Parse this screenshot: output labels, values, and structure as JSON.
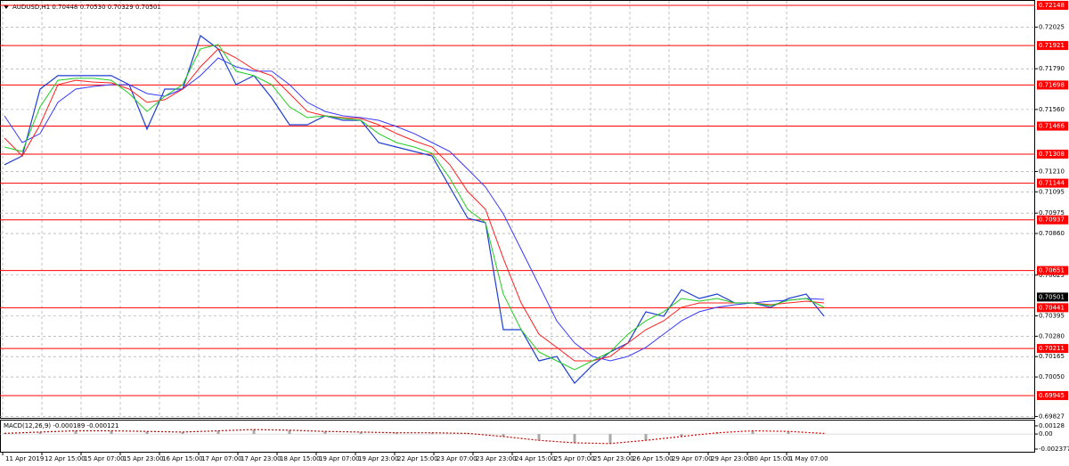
{
  "chart_data": [
    {
      "type": "line",
      "title": "AUDUSD,H1  0.70448 0.70530 0.70329 0.70501",
      "x": [
        0,
        1,
        2,
        3,
        4,
        5,
        6,
        7,
        8,
        9,
        10,
        11,
        12,
        13,
        14,
        15,
        16,
        17,
        18,
        19,
        20,
        21,
        22,
        23,
        24,
        25,
        26,
        27,
        28,
        29,
        30,
        31,
        32,
        33,
        34,
        35,
        36,
        37,
        38,
        39,
        40,
        41,
        42,
        43,
        44,
        45,
        46
      ],
      "xlim": [
        -0.25,
        57.75
      ],
      "xticks": [
        {
          "value": -0.1,
          "label": "11 Apr 2019"
        },
        {
          "value": 2.1,
          "label": "12 Apr 15:00"
        },
        {
          "value": 4.3,
          "label": "15 Apr 07:00"
        },
        {
          "value": 6.5,
          "label": "15 Apr 23:00"
        },
        {
          "value": 8.7,
          "label": "16 Apr 15:00"
        },
        {
          "value": 10.9,
          "label": "17 Apr 07:00"
        },
        {
          "value": 13.1,
          "label": "17 Apr 23:00"
        },
        {
          "value": 15.3,
          "label": "18 Apr 15:00"
        },
        {
          "value": 17.5,
          "label": "19 Apr 07:00"
        },
        {
          "value": 19.7,
          "label": "19 Apr 23:00"
        },
        {
          "value": 21.9,
          "label": "22 Apr 15:00"
        },
        {
          "value": 24.1,
          "label": "23 Apr 07:00"
        },
        {
          "value": 26.3,
          "label": "23 Apr 23:00"
        },
        {
          "value": 28.5,
          "label": "24 Apr 15:00"
        },
        {
          "value": 30.7,
          "label": "25 Apr 07:00"
        },
        {
          "value": 32.9,
          "label": "25 Apr 23:00"
        },
        {
          "value": 35.1,
          "label": "26 Apr 15:00"
        },
        {
          "value": 37.3,
          "label": "29 Apr 07:00"
        },
        {
          "value": 39.5,
          "label": "29 Apr 23:00"
        },
        {
          "value": 41.7,
          "label": "30 Apr 15:00"
        },
        {
          "value": 43.9,
          "label": "1 May 07:00"
        }
      ],
      "ylim": [
        0.69814,
        0.72178
      ],
      "yticks": [
        {
          "value": 0.72025,
          "label": "0.72025"
        },
        {
          "value": 0.7179,
          "label": "0.71790"
        },
        {
          "value": 0.7156,
          "label": "0.71560"
        },
        {
          "value": 0.7121,
          "label": "0.71210"
        },
        {
          "value": 0.71095,
          "label": "0.71095"
        },
        {
          "value": 0.70975,
          "label": "0.70975"
        },
        {
          "value": 0.7086,
          "label": "0.70860"
        },
        {
          "value": 0.70625,
          "label": "0.70625"
        },
        {
          "value": 0.70395,
          "label": "0.70395"
        },
        {
          "value": 0.7028,
          "label": "0.70280"
        },
        {
          "value": 0.70165,
          "label": "0.70165"
        },
        {
          "value": 0.7005,
          "label": "0.70050"
        },
        {
          "value": 0.69827,
          "label": "0.69827"
        }
      ],
      "grid": true,
      "levels": [
        {
          "value": 0.72148,
          "label": "0.72148"
        },
        {
          "value": 0.71921,
          "label": "0.71921"
        },
        {
          "value": 0.71698,
          "label": "0.71698"
        },
        {
          "value": 0.71466,
          "label": "0.71466"
        },
        {
          "value": 0.71308,
          "label": "0.71308"
        },
        {
          "value": 0.71144,
          "label": "0.71144"
        },
        {
          "value": 0.70937,
          "label": "0.70937"
        },
        {
          "value": 0.70651,
          "label": "0.70651"
        },
        {
          "value": 0.70441,
          "label": "0.70441"
        },
        {
          "value": 0.70211,
          "label": "0.70211"
        },
        {
          "value": 0.69945,
          "label": "0.69945"
        }
      ],
      "level_color": "#ff0000",
      "current_price": {
        "value": 0.70501,
        "label": "0.70501"
      },
      "series": [
        {
          "color": "#1f3fcf",
          "values": [
            0.71248,
            0.71298,
            0.71675,
            0.71751,
            0.71751,
            0.71751,
            0.71751,
            0.717,
            0.71449,
            0.71675,
            0.71675,
            0.71977,
            0.71902,
            0.717,
            0.71751,
            0.71625,
            0.71474,
            0.71474,
            0.71524,
            0.71499,
            0.71499,
            0.71373,
            0.71348,
            0.71323,
            0.71298,
            0.71122,
            0.70946,
            0.70921,
            0.70317,
            0.70317,
            0.70141,
            0.70166,
            0.70015,
            0.70116,
            0.70191,
            0.70242,
            0.70418,
            0.70393,
            0.70543,
            0.70493,
            0.70518,
            0.70468,
            0.70468,
            0.70443,
            0.70493,
            0.70518,
            0.70393
          ]
        },
        {
          "color": "#3a3aff",
          "values": [
            0.71524,
            0.71373,
            0.71424,
            0.716,
            0.71675,
            0.7169,
            0.717,
            0.717,
            0.7165,
            0.71635,
            0.71675,
            0.71751,
            0.71851,
            0.71801,
            0.71776,
            0.71776,
            0.717,
            0.716,
            0.71549,
            0.71524,
            0.71514,
            0.71499,
            0.71464,
            0.71424,
            0.71373,
            0.71323,
            0.71223,
            0.71122,
            0.70971,
            0.7077,
            0.70569,
            0.70367,
            0.70242,
            0.70166,
            0.70141,
            0.70166,
            0.70217,
            0.70292,
            0.70367,
            0.70418,
            0.70443,
            0.70458,
            0.70468,
            0.70478,
            0.70483,
            0.70493,
            0.70488
          ]
        },
        {
          "color": "#ff2020",
          "values": [
            0.71399,
            0.71298,
            0.71474,
            0.717,
            0.71725,
            0.71715,
            0.7171,
            0.71675,
            0.716,
            0.71615,
            0.71675,
            0.71801,
            0.71902,
            0.71851,
            0.71786,
            0.71751,
            0.7165,
            0.71549,
            0.71524,
            0.71514,
            0.71509,
            0.71474,
            0.71424,
            0.71383,
            0.71348,
            0.71248,
            0.71097,
            0.70996,
            0.7072,
            0.70468,
            0.70292,
            0.70217,
            0.70141,
            0.70141,
            0.70166,
            0.70242,
            0.70317,
            0.70367,
            0.70443,
            0.70468,
            0.70468,
            0.70468,
            0.70468,
            0.70458,
            0.70468,
            0.70478,
            0.70468
          ]
        },
        {
          "color": "#22cc22",
          "values": [
            0.71348,
            0.71323,
            0.71575,
            0.71725,
            0.71736,
            0.71736,
            0.71725,
            0.7165,
            0.71549,
            0.71635,
            0.717,
            0.71902,
            0.71927,
            0.71776,
            0.71751,
            0.717,
            0.71575,
            0.71514,
            0.71524,
            0.71509,
            0.71499,
            0.71424,
            0.71373,
            0.71348,
            0.71313,
            0.71172,
            0.70996,
            0.70921,
            0.70518,
            0.70317,
            0.70191,
            0.70141,
            0.70091,
            0.70141,
            0.70191,
            0.70292,
            0.70367,
            0.70418,
            0.70493,
            0.70478,
            0.70493,
            0.70468,
            0.70468,
            0.70453,
            0.70483,
            0.70493,
            0.70443
          ]
        }
      ]
    },
    {
      "type": "macd",
      "title": "MACD(12,26,9) -0.000189 -0.000121",
      "x": [
        0,
        2,
        4,
        6,
        8,
        10,
        12,
        14,
        16,
        18,
        20,
        22,
        24,
        26,
        28,
        30,
        32,
        34,
        36,
        38,
        40,
        42,
        44,
        46
      ],
      "xlim": [
        -0.25,
        57.75
      ],
      "ylim": [
        -0.00294,
        0.00212
      ],
      "yticks": [
        {
          "value": 0.00128,
          "label": "0.00128"
        },
        {
          "value": 0,
          "label": "0.00"
        },
        {
          "value": -0.002377,
          "label": "-0.002377"
        }
      ],
      "series": [
        {
          "color": "#cc0000",
          "values": [
            0.0001,
            0.0003,
            0.0005,
            0.0005,
            0.0004,
            0.0003,
            0.0005,
            0.0007,
            0.0006,
            0.0004,
            0.0003,
            0.0002,
            0.0002,
            0.0001,
            -0.0004,
            -0.001,
            -0.0014,
            -0.0015,
            -0.001,
            -0.0004,
            0.0002,
            0.0005,
            0.0004,
            0.0001
          ]
        }
      ]
    }
  ]
}
